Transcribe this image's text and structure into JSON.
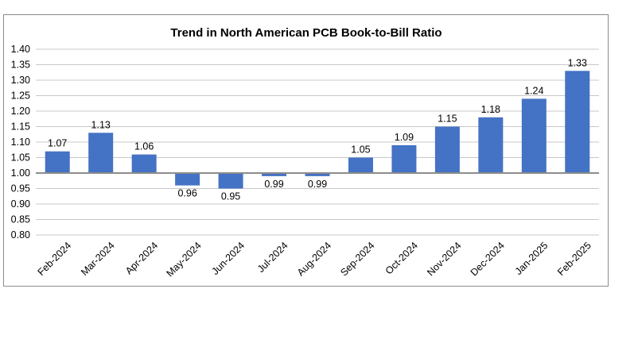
{
  "chart_data": {
    "type": "bar",
    "title": "Trend in North American PCB Book-to-Bill Ratio",
    "categories": [
      "Feb-2024",
      "Mar-2024",
      "Apr-2024",
      "May-2024",
      "Jun-2024",
      "Jul-2024",
      "Aug-2024",
      "Sep-2024",
      "Oct-2024",
      "Nov-2024",
      "Dec-2024",
      "Jan-2025",
      "Feb-2025"
    ],
    "values": [
      1.07,
      1.13,
      1.06,
      0.96,
      0.95,
      0.99,
      0.99,
      1.05,
      1.09,
      1.15,
      1.18,
      1.24,
      1.33
    ],
    "data_labels": [
      "1.07",
      "1.13",
      "1.06",
      "0.96",
      "0.95",
      "0.99",
      "0.99",
      "1.05",
      "1.09",
      "1.15",
      "1.18",
      "1.24",
      "1.33"
    ],
    "baseline": 1.0,
    "ylim": [
      0.8,
      1.4
    ],
    "yticks": [
      "0.80",
      "0.85",
      "0.90",
      "0.95",
      "1.00",
      "1.05",
      "1.10",
      "1.15",
      "1.20",
      "1.25",
      "1.30",
      "1.35",
      "1.40"
    ],
    "grid": true,
    "legend": "none",
    "bar_color": "#4472c4"
  }
}
